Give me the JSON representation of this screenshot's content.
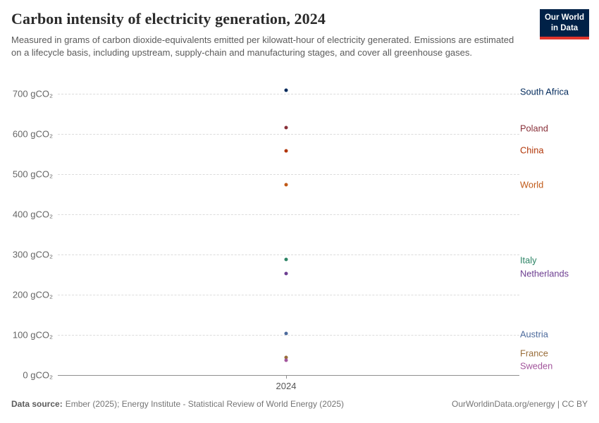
{
  "header": {
    "title": "Carbon intensity of electricity generation, 2024",
    "subtitle": "Measured in grams of carbon dioxide-equivalents emitted per kilowatt-hour of electricity generated. Emissions are estimated on a lifecycle basis, including upstream, supply-chain and manufacturing stages, and cover all greenhouse gases.",
    "logo": {
      "line1": "Our World",
      "line2": "in Data",
      "bg_color": "#002147",
      "accent_color": "#E0352C"
    }
  },
  "chart_data": {
    "type": "scatter",
    "title": "Carbon intensity of electricity generation, 2024",
    "unit": "gCO₂",
    "ylabel": "gCO₂",
    "xlabel": "",
    "ylim": [
      0,
      715
    ],
    "yticks": [
      0,
      100,
      200,
      300,
      400,
      500,
      600,
      700
    ],
    "ytick_format": "{v} gCO₂",
    "xticks": [
      "2024"
    ],
    "grid": "horizontal-dashed",
    "legend": "labels-right",
    "series": [
      {
        "name": "South Africa",
        "x": "2024",
        "value": 708,
        "color": "#00295B",
        "label_dy": 2
      },
      {
        "name": "Poland",
        "x": "2024",
        "value": 616,
        "color": "#883039",
        "label_dy": 1
      },
      {
        "name": "China",
        "x": "2024",
        "value": 558,
        "color": "#B13507",
        "label_dy": -1
      },
      {
        "name": "World",
        "x": "2024",
        "value": 473,
        "color": "#C05917",
        "label_dy": 0
      },
      {
        "name": "Italy",
        "x": "2024",
        "value": 287,
        "color": "#2C8465",
        "label_dy": 1
      },
      {
        "name": "Netherlands",
        "x": "2024",
        "value": 253,
        "color": "#6D3E91",
        "label_dy": 0
      },
      {
        "name": "Austria",
        "x": "2024",
        "value": 103,
        "color": "#4C6A9C",
        "label_dy": 1
      },
      {
        "name": "France",
        "x": "2024",
        "value": 44,
        "color": "#996D39",
        "label_dy": -6
      },
      {
        "name": "Sweden",
        "x": "2024",
        "value": 37,
        "color": "#A2559C",
        "label_dy": 8
      }
    ]
  },
  "footer": {
    "source_label": "Data source:",
    "source_text": "Ember (2025); Energy Institute - Statistical Review of World Energy (2025)",
    "rights": "OurWorldinData.org/energy | CC BY"
  }
}
